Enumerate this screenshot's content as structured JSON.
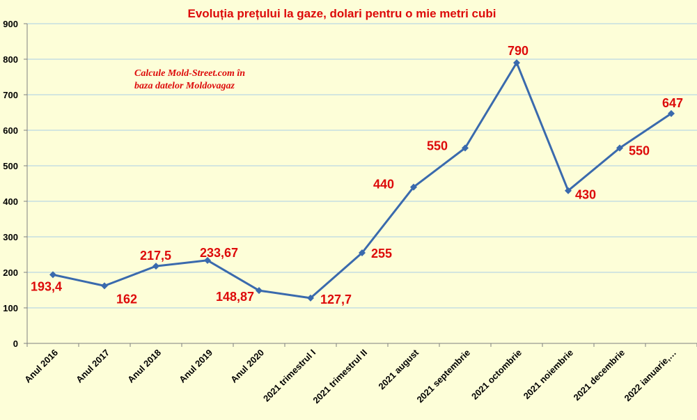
{
  "chart_data": {
    "type": "line",
    "title": "Evoluția prețului la gaze, dolari pentru o mie metri cubi",
    "annotation": [
      "Calcule Mold-Street.com în",
      "baza datelor Moldovagaz"
    ],
    "categories": [
      "Anul 2016",
      "Anul 2017",
      "Anul 2018",
      "Anul 2019",
      "Anul 2020",
      "2021 trimestrul I",
      "2021 trimestrul II",
      "2021 august",
      "2021 septembrie",
      "2021 octombrie",
      "2021 noiembrie",
      "2021 decembrie",
      "2022 ianuarie,…"
    ],
    "values": [
      193.4,
      162,
      217.5,
      233.67,
      148.87,
      127.7,
      255,
      440,
      550,
      790,
      430,
      550,
      647
    ],
    "data_labels": [
      "193,4",
      "162",
      "217,5",
      "233,67",
      "148,87",
      "127,7",
      "255",
      "440",
      "550",
      "790",
      "430",
      "550",
      "647"
    ],
    "yticks": [
      0,
      100,
      200,
      300,
      400,
      500,
      600,
      700,
      800,
      900
    ],
    "ylim": [
      0,
      900
    ],
    "grid": true,
    "legend": "none",
    "colors": {
      "background": "#fdfed8",
      "line": "#3a6aad",
      "labels": "#dd0a0a",
      "grid": "#a9cde6"
    }
  }
}
